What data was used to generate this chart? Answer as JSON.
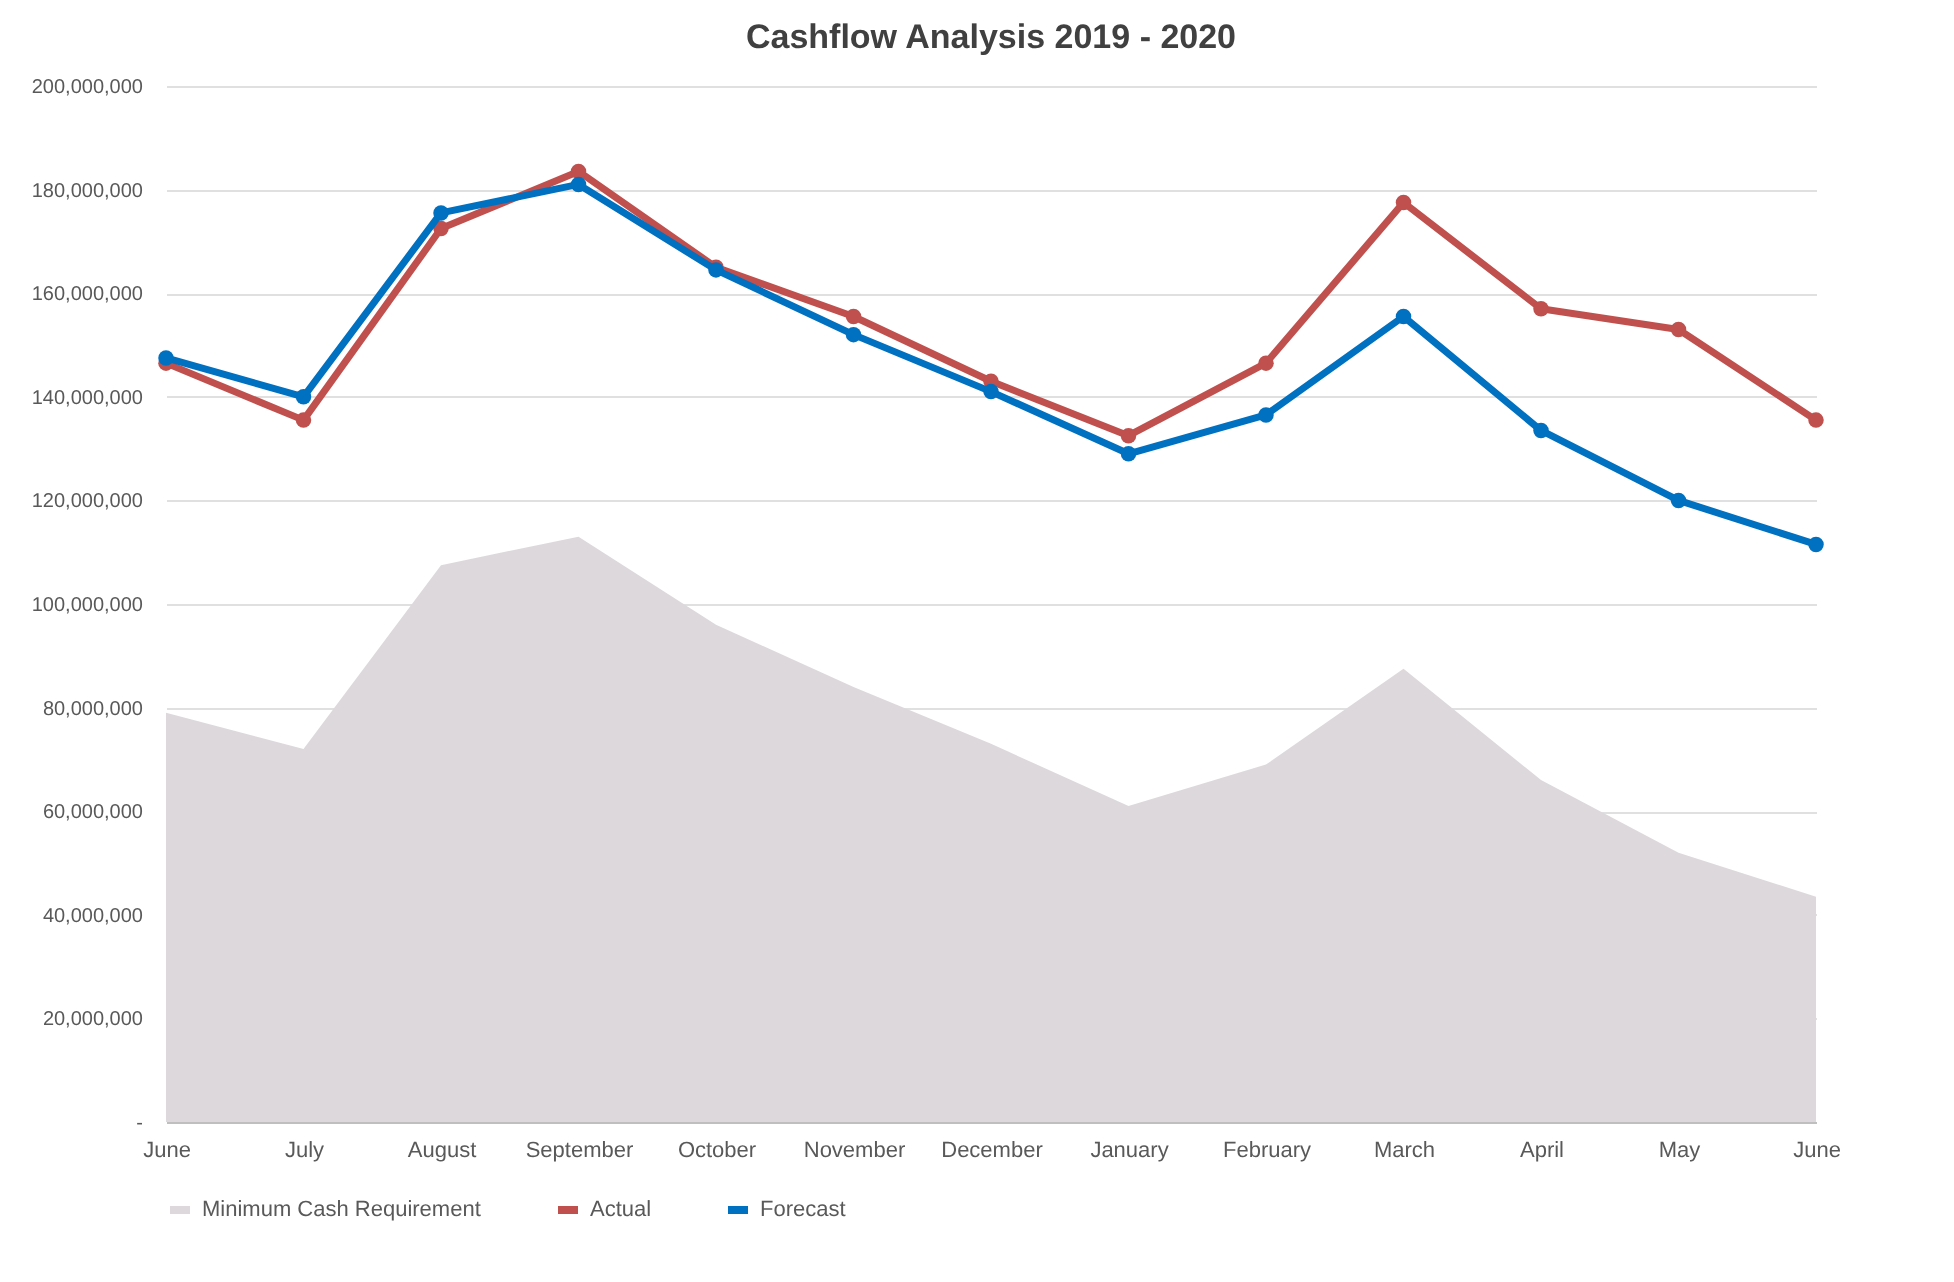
{
  "chart_data": {
    "type": "line",
    "title": "Cashflow Analysis 2019 - 2020",
    "categories": [
      "June",
      "July",
      "August",
      "September",
      "October",
      "November",
      "December",
      "January",
      "February",
      "March",
      "April",
      "May",
      "June"
    ],
    "series": [
      {
        "name": "Minimum Cash Requirement",
        "type": "area",
        "color": "#dcd8dc",
        "values": [
          79000000,
          72000000,
          107500000,
          113000000,
          96000000,
          84000000,
          73000000,
          61000000,
          69000000,
          87500000,
          66000000,
          52000000,
          43500000
        ]
      },
      {
        "name": "Actual",
        "color": "#c0504d",
        "marker": "circle",
        "values": [
          146500000,
          135500000,
          172500000,
          183500000,
          165000000,
          155500000,
          143000000,
          132500000,
          146500000,
          177500000,
          157000000,
          153000000,
          135500000
        ]
      },
      {
        "name": "Forecast",
        "color": "#0070c0",
        "marker": "circle",
        "values": [
          147500000,
          140000000,
          175500000,
          181000000,
          164500000,
          152000000,
          141000000,
          129000000,
          136500000,
          155500000,
          133500000,
          120000000,
          111500000
        ]
      }
    ],
    "ylim": [
      0,
      200000000
    ],
    "yticks": [
      {
        "value": 0,
        "label": "-"
      },
      {
        "value": 20000000,
        "label": "20,000,000"
      },
      {
        "value": 40000000,
        "label": "40,000,000"
      },
      {
        "value": 60000000,
        "label": "60,000,000"
      },
      {
        "value": 80000000,
        "label": "80,000,000"
      },
      {
        "value": 100000000,
        "label": "100,000,000"
      },
      {
        "value": 120000000,
        "label": "120,000,000"
      },
      {
        "value": 140000000,
        "label": "140,000,000"
      },
      {
        "value": 160000000,
        "label": "160,000,000"
      },
      {
        "value": 180000000,
        "label": "180,000,000"
      },
      {
        "value": 200000000,
        "label": "200,000,000"
      }
    ],
    "grid": "y",
    "legend": "bottom"
  }
}
